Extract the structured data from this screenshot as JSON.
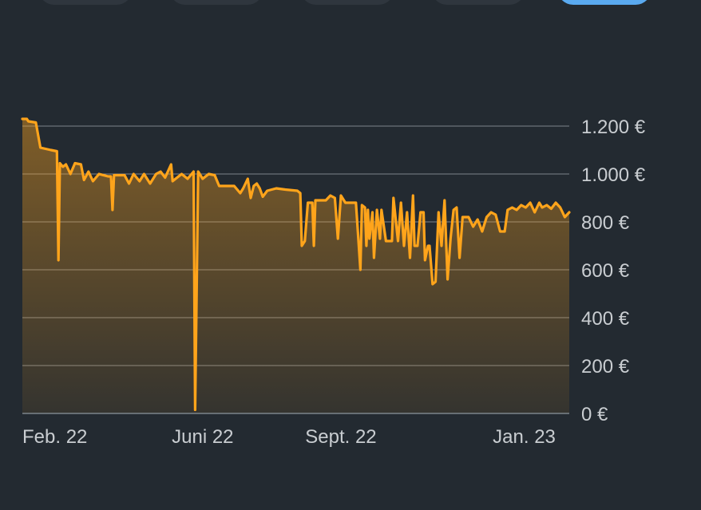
{
  "range_tabs": [
    {
      "label": "",
      "active": false
    },
    {
      "label": "",
      "active": false
    },
    {
      "label": "",
      "active": false
    },
    {
      "label": "",
      "active": false
    },
    {
      "label": "",
      "active": true
    }
  ],
  "colors": {
    "background": "#232a31",
    "line": "#ffa41b",
    "grid": "#7d848b",
    "text": "#c9cdd1",
    "active_tab": "#5aaaf0"
  },
  "chart_data": {
    "type": "area",
    "title": "",
    "xlabel": "",
    "ylabel": "",
    "x_range": [
      "2022-02-01",
      "2023-01-31"
    ],
    "ylim": [
      0,
      1200
    ],
    "y_ticks": [
      0,
      200,
      400,
      600,
      800,
      1000,
      1200
    ],
    "y_tick_labels": [
      "0 €",
      "200 €",
      "400 €",
      "600 €",
      "800 €",
      "1.000 €",
      "1.200 €"
    ],
    "x_ticks": [
      {
        "date": "2022-02-01",
        "label": "Feb. 22"
      },
      {
        "date": "2022-06-01",
        "label": "Juni 22"
      },
      {
        "date": "2022-09-01",
        "label": "Sept. 22"
      },
      {
        "date": "2023-01-01",
        "label": "Jan. 23"
      }
    ],
    "grid": true,
    "legend": "none",
    "series": [
      {
        "points": [
          [
            "2022-02-01",
            1230
          ],
          [
            "2022-02-04",
            1230
          ],
          [
            "2022-02-05",
            1220
          ],
          [
            "2022-02-10",
            1215
          ],
          [
            "2022-02-13",
            1110
          ],
          [
            "2022-02-20",
            1100
          ],
          [
            "2022-02-24",
            1095
          ],
          [
            "2022-02-25",
            640
          ],
          [
            "2022-02-26",
            1045
          ],
          [
            "2022-02-28",
            1030
          ],
          [
            "2022-03-02",
            1040
          ],
          [
            "2022-03-05",
            1000
          ],
          [
            "2022-03-08",
            1045
          ],
          [
            "2022-03-12",
            1040
          ],
          [
            "2022-03-14",
            975
          ],
          [
            "2022-03-17",
            1010
          ],
          [
            "2022-03-20",
            970
          ],
          [
            "2022-03-24",
            1000
          ],
          [
            "2022-03-30",
            990
          ],
          [
            "2022-04-01",
            990
          ],
          [
            "2022-04-02",
            850
          ],
          [
            "2022-04-03",
            995
          ],
          [
            "2022-04-10",
            995
          ],
          [
            "2022-04-13",
            960
          ],
          [
            "2022-04-16",
            1000
          ],
          [
            "2022-04-20",
            970
          ],
          [
            "2022-04-23",
            1000
          ],
          [
            "2022-04-27",
            960
          ],
          [
            "2022-05-01",
            1000
          ],
          [
            "2022-05-04",
            1010
          ],
          [
            "2022-05-07",
            985
          ],
          [
            "2022-05-11",
            1040
          ],
          [
            "2022-05-12",
            970
          ],
          [
            "2022-05-18",
            1000
          ],
          [
            "2022-05-22",
            980
          ],
          [
            "2022-05-26",
            1010
          ],
          [
            "2022-05-27",
            15
          ],
          [
            "2022-05-29",
            1010
          ],
          [
            "2022-06-01",
            980
          ],
          [
            "2022-06-05",
            1000
          ],
          [
            "2022-06-09",
            995
          ],
          [
            "2022-06-12",
            950
          ],
          [
            "2022-06-22",
            950
          ],
          [
            "2022-06-26",
            920
          ],
          [
            "2022-06-28",
            940
          ],
          [
            "2022-07-01",
            980
          ],
          [
            "2022-07-03",
            900
          ],
          [
            "2022-07-05",
            950
          ],
          [
            "2022-07-07",
            960
          ],
          [
            "2022-07-09",
            940
          ],
          [
            "2022-07-11",
            905
          ],
          [
            "2022-07-14",
            930
          ],
          [
            "2022-07-20",
            940
          ],
          [
            "2022-07-26",
            935
          ],
          [
            "2022-08-03",
            930
          ],
          [
            "2022-08-05",
            920
          ],
          [
            "2022-08-06",
            700
          ],
          [
            "2022-08-08",
            720
          ],
          [
            "2022-08-10",
            880
          ],
          [
            "2022-08-13",
            880
          ],
          [
            "2022-08-14",
            700
          ],
          [
            "2022-08-15",
            890
          ],
          [
            "2022-08-22",
            890
          ],
          [
            "2022-08-25",
            910
          ],
          [
            "2022-08-28",
            900
          ],
          [
            "2022-08-30",
            730
          ],
          [
            "2022-09-01",
            910
          ],
          [
            "2022-09-04",
            880
          ],
          [
            "2022-09-11",
            880
          ],
          [
            "2022-09-14",
            600
          ],
          [
            "2022-09-15",
            870
          ],
          [
            "2022-09-17",
            860
          ],
          [
            "2022-09-18",
            700
          ],
          [
            "2022-09-19",
            850
          ],
          [
            "2022-09-20",
            730
          ],
          [
            "2022-09-22",
            840
          ],
          [
            "2022-09-23",
            650
          ],
          [
            "2022-09-25",
            850
          ],
          [
            "2022-09-27",
            730
          ],
          [
            "2022-09-28",
            850
          ],
          [
            "2022-10-01",
            720
          ],
          [
            "2022-10-05",
            720
          ],
          [
            "2022-10-06",
            900
          ],
          [
            "2022-10-09",
            720
          ],
          [
            "2022-10-11",
            880
          ],
          [
            "2022-10-13",
            700
          ],
          [
            "2022-10-15",
            840
          ],
          [
            "2022-10-17",
            650
          ],
          [
            "2022-10-19",
            910
          ],
          [
            "2022-10-20",
            700
          ],
          [
            "2022-10-22",
            700
          ],
          [
            "2022-10-24",
            840
          ],
          [
            "2022-10-26",
            840
          ],
          [
            "2022-10-27",
            640
          ],
          [
            "2022-10-29",
            700
          ],
          [
            "2022-10-30",
            700
          ],
          [
            "2022-11-01",
            540
          ],
          [
            "2022-11-03",
            550
          ],
          [
            "2022-11-05",
            840
          ],
          [
            "2022-11-07",
            700
          ],
          [
            "2022-11-09",
            890
          ],
          [
            "2022-11-11",
            560
          ],
          [
            "2022-11-13",
            730
          ],
          [
            "2022-11-15",
            850
          ],
          [
            "2022-11-17",
            860
          ],
          [
            "2022-11-19",
            650
          ],
          [
            "2022-11-21",
            820
          ],
          [
            "2022-11-25",
            820
          ],
          [
            "2022-11-28",
            780
          ],
          [
            "2022-12-01",
            810
          ],
          [
            "2022-12-04",
            760
          ],
          [
            "2022-12-07",
            820
          ],
          [
            "2022-12-10",
            840
          ],
          [
            "2022-12-13",
            830
          ],
          [
            "2022-12-16",
            760
          ],
          [
            "2022-12-19",
            760
          ],
          [
            "2022-12-21",
            850
          ],
          [
            "2022-12-24",
            860
          ],
          [
            "2022-12-27",
            850
          ],
          [
            "2022-12-30",
            870
          ],
          [
            "2023-01-02",
            860
          ],
          [
            "2023-01-05",
            880
          ],
          [
            "2023-01-08",
            840
          ],
          [
            "2023-01-11",
            880
          ],
          [
            "2023-01-13",
            860
          ],
          [
            "2023-01-16",
            870
          ],
          [
            "2023-01-19",
            855
          ],
          [
            "2023-01-22",
            880
          ],
          [
            "2023-01-25",
            860
          ],
          [
            "2023-01-28",
            820
          ],
          [
            "2023-01-31",
            840
          ]
        ]
      }
    ]
  }
}
